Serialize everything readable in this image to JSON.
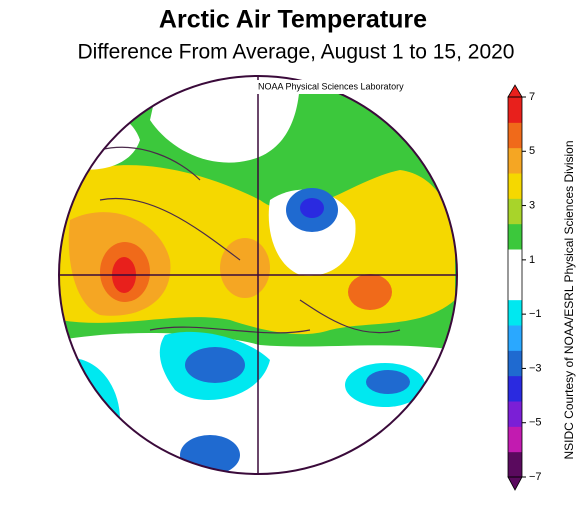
{
  "map": {
    "title": "Arctic Air Temperature",
    "subtitle": "Difference From Average, August 1 to 15, 2020",
    "source_label": "NOAA Physical Sciences Laboratory",
    "credit": "NSIDC Courtesy of NOAA/ESRL Physical Sciences Division",
    "colorbar": {
      "lim": [
        -7,
        7
      ],
      "ticks": [
        {
          "value": -7,
          "label": "−7"
        },
        {
          "value": -5,
          "label": "−5"
        },
        {
          "value": -3,
          "label": "−3"
        },
        {
          "value": -1,
          "label": "−1"
        },
        1,
        3,
        5,
        7
      ],
      "colors": [
        "#5a0a5e",
        "#c21bb0",
        "#7b1fd6",
        "#2a2ae0",
        "#1f6ad0",
        "#2aa8ff",
        "#00e8f0",
        "#ffffff",
        "#ffffff",
        "#3cc83c",
        "#a8d42a",
        "#f5d800",
        "#f5a623",
        "#f06a1a",
        "#e8201c"
      ]
    }
  }
}
